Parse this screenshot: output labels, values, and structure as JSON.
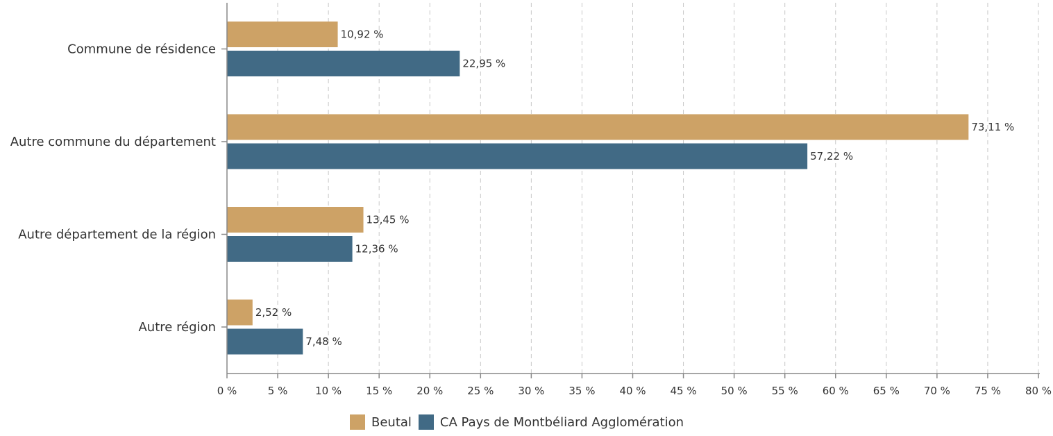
{
  "chart_data": {
    "type": "bar",
    "orientation": "horizontal",
    "categories": [
      "Commune de résidence",
      "Autre commune du département",
      "Autre département de la région",
      "Autre région"
    ],
    "series": [
      {
        "name": "Beutal",
        "color": "#cda266",
        "values": [
          10.92,
          73.11,
          13.45,
          2.52
        ],
        "labels": [
          "10,92 %",
          "73,11 %",
          "13,45 %",
          "2,52 %"
        ]
      },
      {
        "name": "CA Pays de Montbéliard Agglomération",
        "color": "#416a85",
        "values": [
          22.95,
          57.22,
          12.36,
          7.48
        ],
        "labels": [
          "22,95 %",
          "57,22 %",
          "12,36 %",
          "7,48 %"
        ]
      }
    ],
    "xlim": [
      0,
      80
    ],
    "xticks": [
      0,
      5,
      10,
      15,
      20,
      25,
      30,
      35,
      40,
      45,
      50,
      55,
      60,
      65,
      70,
      75,
      80
    ],
    "xtick_labels": [
      "0 %",
      "5 %",
      "10 %",
      "15 %",
      "20 %",
      "25 %",
      "30 %",
      "35 %",
      "40 %",
      "45 %",
      "50 %",
      "55 %",
      "60 %",
      "65 %",
      "70 %",
      "75 %",
      "80 %"
    ],
    "grid": "vertical dashed",
    "legend": "bottom-center",
    "title": "",
    "xlabel": "",
    "ylabel": ""
  }
}
